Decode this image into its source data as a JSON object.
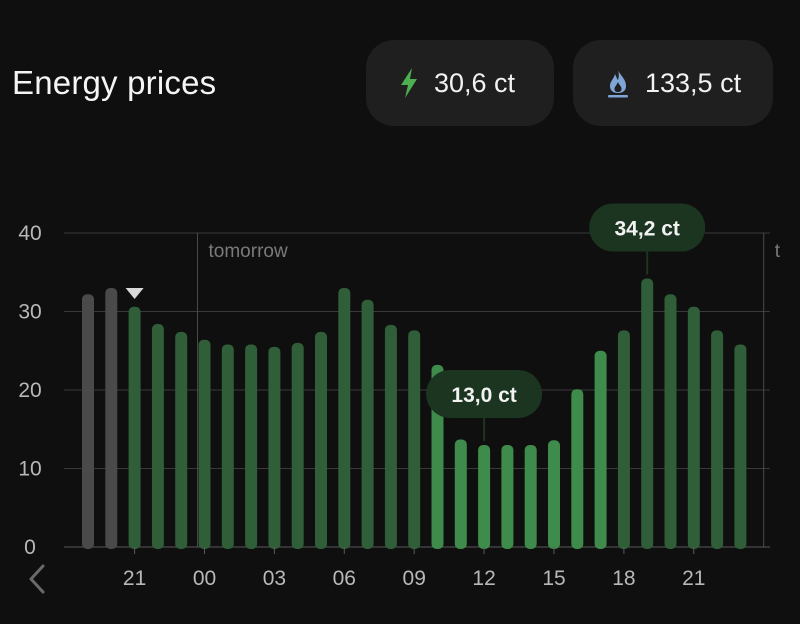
{
  "header": {
    "title": "Energy prices",
    "electricity_price": "30,6 ct",
    "gas_price": "133,5 ct"
  },
  "colors": {
    "background": "#0f0f0f",
    "pill_background": "#1e1f1e",
    "bar_past": "#4a4a4a",
    "bar_future": "#2f5e38",
    "bar_low": "#3f8b4b",
    "label_bg": "#1c3521",
    "electricity_icon": "#4caf50",
    "gas_icon": "#7fa6d6"
  },
  "icons": {
    "electricity": "lightning-bolt-icon",
    "gas": "flame-icon",
    "back": "chevron-left-icon"
  },
  "chart_data": {
    "type": "bar",
    "ylim": [
      0,
      40
    ],
    "yticks": [
      "0",
      "10",
      "20",
      "30",
      "40"
    ],
    "xticks": [
      "21",
      "00",
      "03",
      "06",
      "09",
      "12",
      "15",
      "18",
      "21"
    ],
    "grid": true,
    "divider_labels": [
      "tomorrow",
      "t"
    ],
    "current_hour_marker": "21",
    "values": [
      32.2,
      33.0,
      30.6,
      28.4,
      27.4,
      26.4,
      25.8,
      25.8,
      25.5,
      26.0,
      27.4,
      33.0,
      31.5,
      28.3,
      27.6,
      23.2,
      13.7,
      13.0,
      13.0,
      13.0,
      13.6,
      20.1,
      25.0,
      27.6,
      34.2,
      32.2,
      30.6,
      27.6,
      25.8
    ],
    "bar_status": [
      "past",
      "past",
      "current",
      "future",
      "future",
      "future",
      "future",
      "future",
      "future",
      "future",
      "future",
      "future",
      "future",
      "future",
      "future",
      "low",
      "low",
      "low",
      "low",
      "low",
      "low",
      "low",
      "low",
      "future",
      "future",
      "future",
      "future",
      "future",
      "future"
    ],
    "annotations": [
      {
        "label": "13,0 ct",
        "value": 13.0
      },
      {
        "label": "34,2 ct",
        "value": 34.2
      }
    ]
  }
}
